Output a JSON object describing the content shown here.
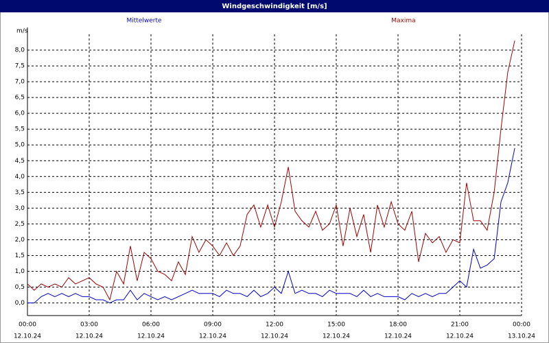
{
  "chart_data": {
    "type": "line",
    "title": "Windgeschwindigkeit [m/s]",
    "y_unit": "m/s",
    "x": [
      0,
      0.33,
      0.67,
      1,
      1.33,
      1.67,
      2,
      2.33,
      2.67,
      3,
      3.33,
      3.67,
      4,
      4.33,
      4.67,
      5,
      5.33,
      5.67,
      6,
      6.33,
      6.67,
      7,
      7.33,
      7.67,
      8,
      8.33,
      8.67,
      9,
      9.33,
      9.67,
      10,
      10.33,
      10.67,
      11,
      11.33,
      11.67,
      12,
      12.33,
      12.67,
      13,
      13.33,
      13.67,
      14,
      14.33,
      14.67,
      15,
      15.33,
      15.67,
      16,
      16.33,
      16.67,
      17,
      17.33,
      17.67,
      18,
      18.33,
      18.67,
      19,
      19.33,
      19.67,
      20,
      20.33,
      20.67,
      21,
      21.33,
      21.67,
      22,
      22.33,
      22.67,
      23,
      23.33,
      23.67
    ],
    "series": [
      {
        "name": "Mittelwerte",
        "color": "#0000cc",
        "values": [
          0,
          0,
          0.2,
          0.3,
          0.2,
          0.3,
          0.2,
          0.3,
          0.2,
          0.2,
          0.1,
          0.1,
          0,
          0.1,
          0.1,
          0.4,
          0.1,
          0.3,
          0.2,
          0.1,
          0.2,
          0.1,
          0.2,
          0.3,
          0.4,
          0.3,
          0.3,
          0.3,
          0.2,
          0.4,
          0.3,
          0.3,
          0.2,
          0.4,
          0.2,
          0.3,
          0.5,
          0.3,
          1.0,
          0.3,
          0.4,
          0.3,
          0.3,
          0.2,
          0.4,
          0.3,
          0.3,
          0.3,
          0.2,
          0.4,
          0.2,
          0.3,
          0.2,
          0.2,
          0.2,
          0.1,
          0.3,
          0.2,
          0.3,
          0.2,
          0.3,
          0.3,
          0.5,
          0.7,
          0.5,
          1.7,
          1.1,
          1.2,
          1.4,
          3.2,
          3.8,
          4.9
        ]
      },
      {
        "name": "Maxima",
        "color": "#a00000",
        "values": [
          0.6,
          0.4,
          0.6,
          0.5,
          0.6,
          0.5,
          0.8,
          0.6,
          0.7,
          0.8,
          0.6,
          0.5,
          0.1,
          1.0,
          0.6,
          1.8,
          0.7,
          1.6,
          1.4,
          1.0,
          0.9,
          0.7,
          1.3,
          0.9,
          2.1,
          1.6,
          2.0,
          1.8,
          1.5,
          1.9,
          1.5,
          1.8,
          2.8,
          3.1,
          2.4,
          3.1,
          2.4,
          3.2,
          4.3,
          2.9,
          2.6,
          2.4,
          2.9,
          2.3,
          2.5,
          3.1,
          1.8,
          3.0,
          2.1,
          2.8,
          1.6,
          3.1,
          2.4,
          3.2,
          2.5,
          2.3,
          2.9,
          1.3,
          2.2,
          1.9,
          2.1,
          1.6,
          2.0,
          1.9,
          3.8,
          2.6,
          2.6,
          2.3,
          3.5,
          5.5,
          7.3,
          8.3
        ]
      }
    ],
    "xlim": [
      0,
      24
    ],
    "xticks": [
      {
        "value": 0,
        "label": "00:00",
        "date": "12.10.24"
      },
      {
        "value": 3,
        "label": "03:00",
        "date": "12.10.24"
      },
      {
        "value": 6,
        "label": "06:00",
        "date": "12.10.24"
      },
      {
        "value": 9,
        "label": "09:00",
        "date": "12.10.24"
      },
      {
        "value": 12,
        "label": "12:00",
        "date": "12.10.24"
      },
      {
        "value": 15,
        "label": "15:00",
        "date": "12.10.24"
      },
      {
        "value": 18,
        "label": "18:00",
        "date": "12.10.24"
      },
      {
        "value": 21,
        "label": "21:00",
        "date": "12.10.24"
      },
      {
        "value": 24,
        "label": "00:00",
        "date": "13.10.24"
      }
    ],
    "ylim": [
      -0.4,
      8.5
    ],
    "yticks": [
      {
        "value": 0,
        "label": "0,0"
      },
      {
        "value": 0.5,
        "label": "0,5"
      },
      {
        "value": 1,
        "label": "1,0"
      },
      {
        "value": 1.5,
        "label": "1,5"
      },
      {
        "value": 2,
        "label": "2,0"
      },
      {
        "value": 2.5,
        "label": "2,5"
      },
      {
        "value": 3,
        "label": "3,0"
      },
      {
        "value": 3.5,
        "label": "3,5"
      },
      {
        "value": 4,
        "label": "4,0"
      },
      {
        "value": 4.5,
        "label": "4,5"
      },
      {
        "value": 5,
        "label": "5,0"
      },
      {
        "value": 5.5,
        "label": "5,5"
      },
      {
        "value": 6,
        "label": "6,0"
      },
      {
        "value": 6.5,
        "label": "6,5"
      },
      {
        "value": 7,
        "label": "7,0"
      },
      {
        "value": 7.5,
        "label": "7,5"
      },
      {
        "value": 8,
        "label": "8,0"
      }
    ],
    "grid": true
  }
}
